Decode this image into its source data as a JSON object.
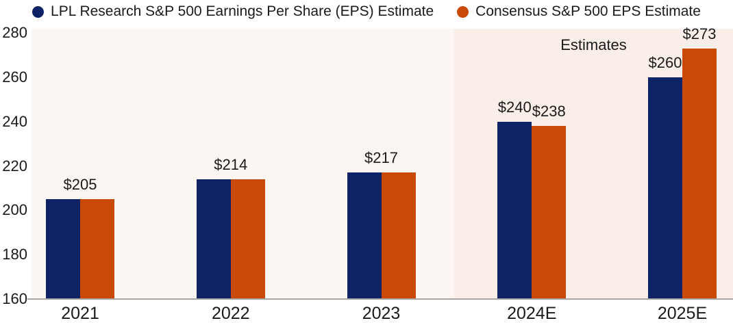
{
  "colors": {
    "navy": "#0d2365",
    "orange": "#c94a07",
    "plot_bg": "#fcf6f3",
    "estimates_bg": "#f9efe8",
    "axis_line": "#a9a6a4",
    "text": "#1a1a1a"
  },
  "legend": [
    {
      "label": "LPL Research S&P 500 Earnings Per Share (EPS) Estimate",
      "color": "#0d2365"
    },
    {
      "label": "Consensus S&P 500 EPS Estimate",
      "color": "#c94a07"
    }
  ],
  "chart_data": {
    "type": "bar",
    "title": "",
    "categories": [
      "2021",
      "2022",
      "2023",
      "2024E",
      "2025E"
    ],
    "series": [
      {
        "name": "LPL Research S&P 500 Earnings Per Share (EPS) Estimate",
        "color": "#0d2365",
        "values": [
          205,
          214,
          217,
          240,
          260
        ]
      },
      {
        "name": "Consensus S&P 500 EPS Estimate",
        "color": "#c94a07",
        "values": [
          205,
          214,
          217,
          238,
          273
        ]
      }
    ],
    "value_labels": [
      {
        "category": "2021",
        "shared": "$205"
      },
      {
        "category": "2022",
        "shared": "$214"
      },
      {
        "category": "2023",
        "shared": "$217"
      },
      {
        "category": "2024E",
        "lpl": "$240",
        "consensus": "$238"
      },
      {
        "category": "2025E",
        "lpl": "$260",
        "consensus": "$273"
      }
    ],
    "y_ticks": [
      280,
      260,
      240,
      220,
      200,
      180,
      160
    ],
    "ylim": [
      160,
      280
    ],
    "grid": false,
    "legend_position": "top",
    "estimates_label": "Estimates",
    "estimates_region_categories": [
      "2024E",
      "2025E"
    ]
  }
}
